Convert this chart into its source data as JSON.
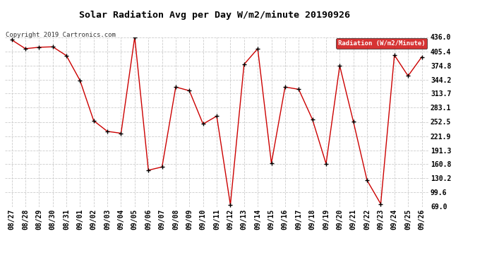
{
  "title": "Solar Radiation Avg per Day W/m2/minute 20190926",
  "copyright_text": "Copyright 2019 Cartronics.com",
  "legend_text": "Radiation (W/m2/Minute)",
  "legend_bg": "#cc0000",
  "legend_fg": "#ffffff",
  "x_labels": [
    "08/27",
    "08/28",
    "08/29",
    "08/30",
    "08/31",
    "09/01",
    "09/02",
    "09/03",
    "09/04",
    "09/05",
    "09/06",
    "09/07",
    "09/08",
    "09/09",
    "09/10",
    "09/11",
    "09/12",
    "09/13",
    "09/14",
    "09/15",
    "09/16",
    "09/17",
    "09/18",
    "09/19",
    "09/20",
    "09/21",
    "09/22",
    "09/23",
    "09/24",
    "09/25",
    "09/26"
  ],
  "y_values": [
    430,
    411,
    414,
    415,
    396,
    342,
    255,
    232,
    228,
    436,
    148,
    155,
    328,
    320,
    248,
    265,
    73,
    377,
    411,
    163,
    328,
    323,
    258,
    162,
    374,
    253,
    126,
    75,
    397,
    352,
    393
  ],
  "y_ticks": [
    69.0,
    99.6,
    130.2,
    160.8,
    191.3,
    221.9,
    252.5,
    283.1,
    313.7,
    344.2,
    374.8,
    405.4,
    436.0
  ],
  "line_color": "#cc0000",
  "marker_color": "#000000",
  "bg_color": "#ffffff",
  "plot_bg_color": "#ffffff",
  "grid_color": "#cccccc",
  "y_min": 69.0,
  "y_max": 436.0,
  "title_fontsize": 9.5,
  "tick_fontsize": 7,
  "copyright_fontsize": 6.5
}
